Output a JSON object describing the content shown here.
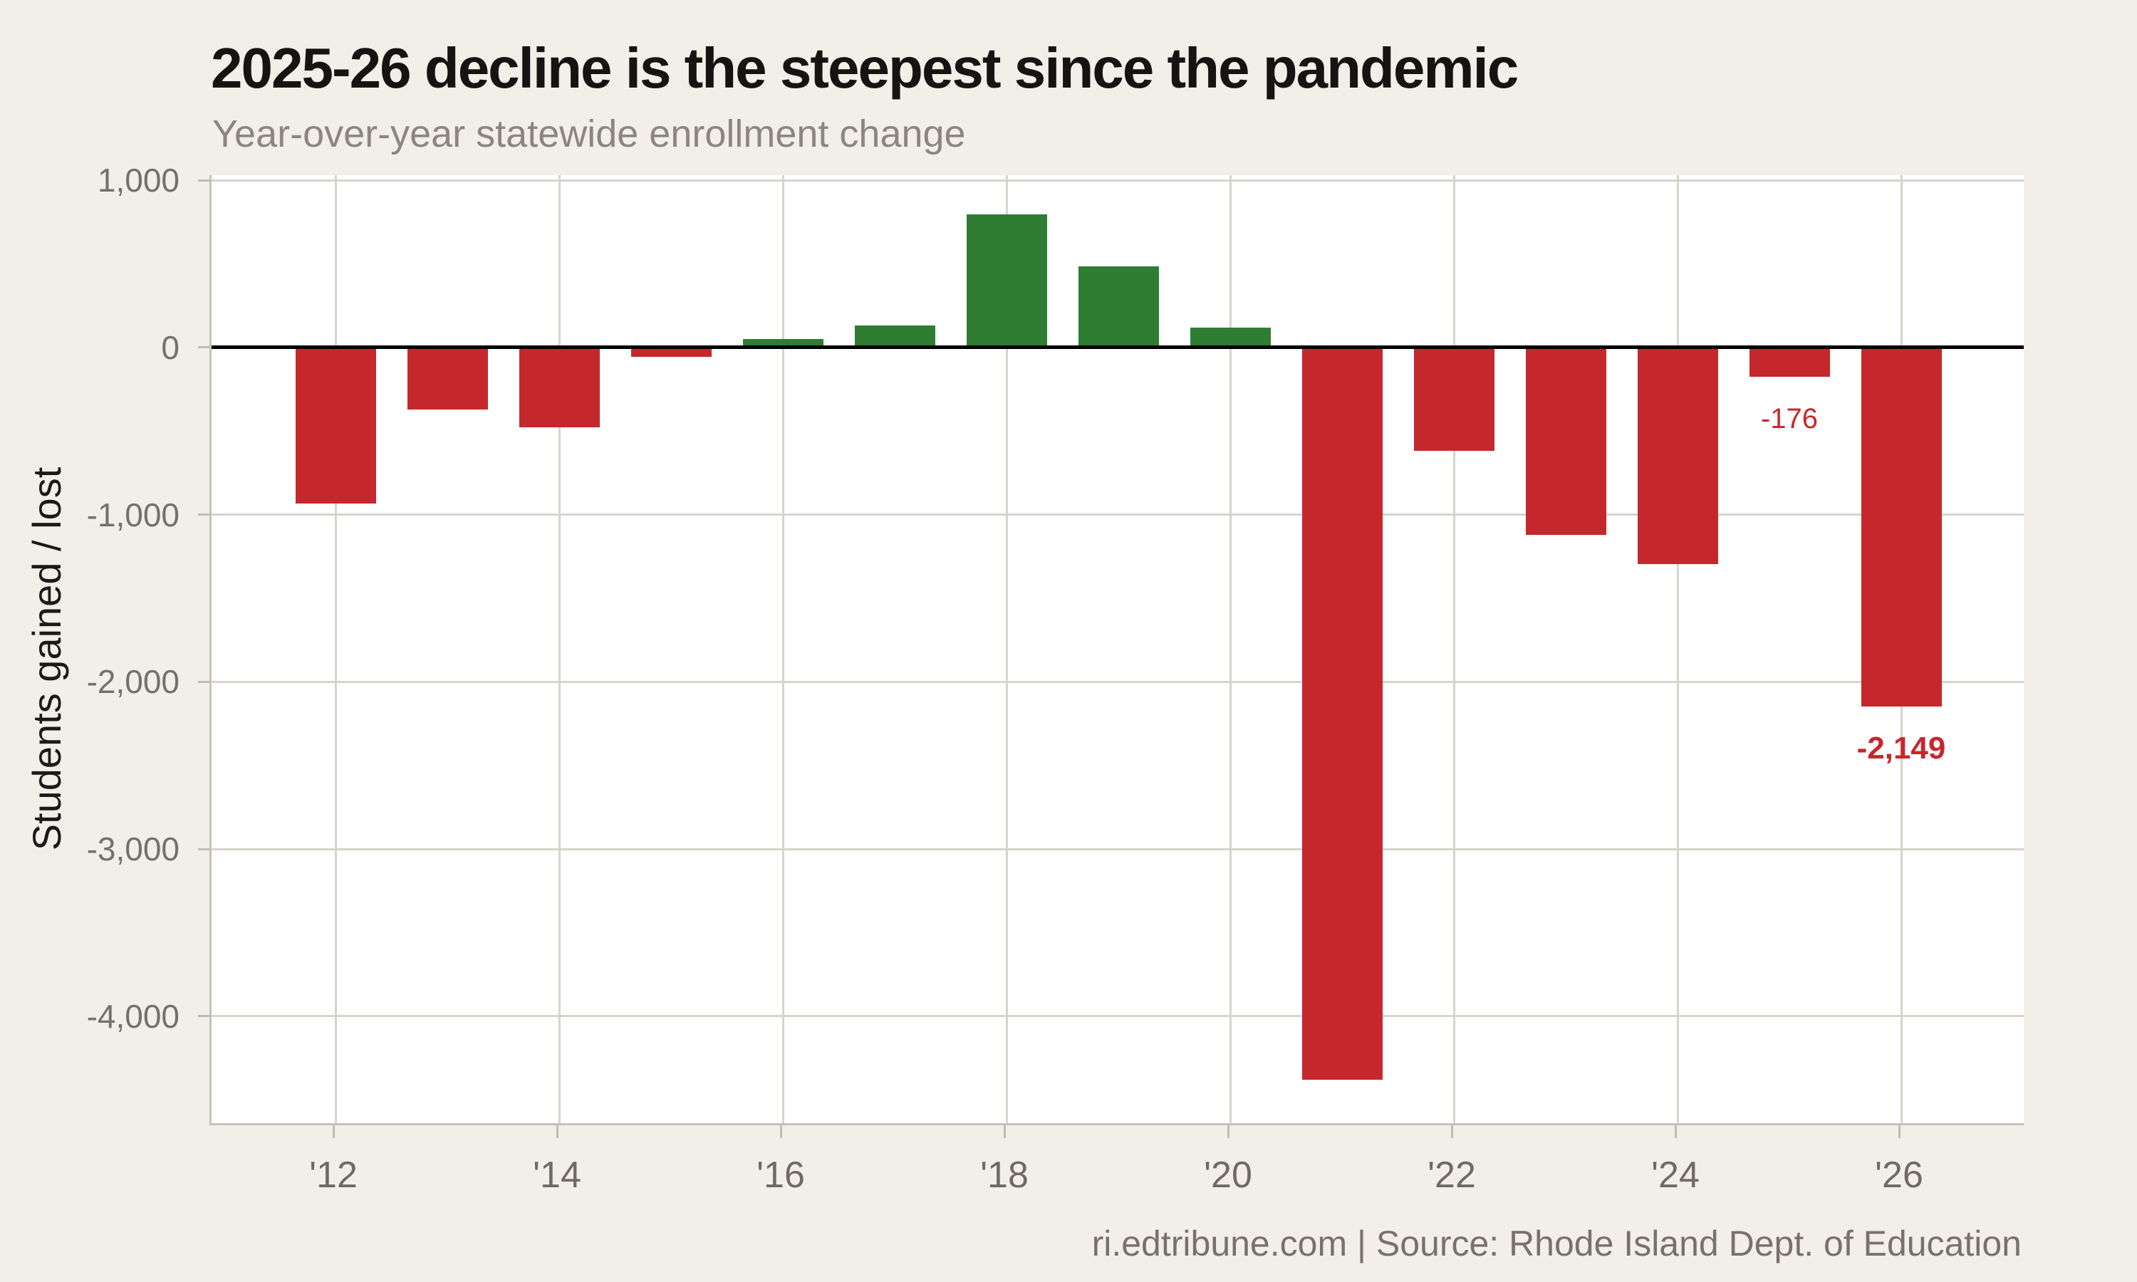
{
  "chart_data": {
    "type": "bar",
    "title": "2025-26 decline is the steepest since the pandemic",
    "subtitle": "Year-over-year statewide enrollment change",
    "ylabel": "Students gained / lost",
    "xlabel": "",
    "categories": [
      "'12",
      "'13",
      "'14",
      "'15",
      "'16",
      "'17",
      "'18",
      "'19",
      "'20",
      "'21",
      "'22",
      "'23",
      "'24",
      "'25",
      "'26"
    ],
    "values": [
      -935,
      -370,
      -480,
      -55,
      50,
      130,
      795,
      485,
      120,
      -4380,
      -620,
      -1120,
      -1295,
      -176,
      -2149
    ],
    "ylim": [
      -4640,
      1030
    ],
    "grid": true,
    "zero_line": true,
    "legend": "none",
    "bar_colors": {
      "positive": "#2e7d33",
      "negative": "#c5282c"
    },
    "y_ticks": [
      {
        "value": 1000,
        "label": "1,000"
      },
      {
        "value": 0,
        "label": "0"
      },
      {
        "value": -1000,
        "label": "-1,000"
      },
      {
        "value": -2000,
        "label": "-2,000"
      },
      {
        "value": -3000,
        "label": "-3,000"
      },
      {
        "value": -4000,
        "label": "-4,000"
      }
    ],
    "x_ticks": [
      {
        "index": 0,
        "label": "'12"
      },
      {
        "index": 2,
        "label": "'14"
      },
      {
        "index": 4,
        "label": "'16"
      },
      {
        "index": 6,
        "label": "'18"
      },
      {
        "index": 8,
        "label": "'20"
      },
      {
        "index": 10,
        "label": "'22"
      },
      {
        "index": 12,
        "label": "'24"
      },
      {
        "index": 14,
        "label": "'26"
      }
    ],
    "annotations": [
      {
        "category": "'25",
        "text": "-176",
        "bold": false
      },
      {
        "category": "'26",
        "text": "-2,149",
        "bold": true
      }
    ]
  },
  "footer": {
    "text": "ri.edtribune.com | Source: Rhode Island Dept. of Education"
  },
  "colors": {
    "background": "#f2efe8",
    "panel": "#ffffff",
    "gain_green": "#2e7d33",
    "loss_red": "#c5282c",
    "zero_line": "#000000"
  }
}
